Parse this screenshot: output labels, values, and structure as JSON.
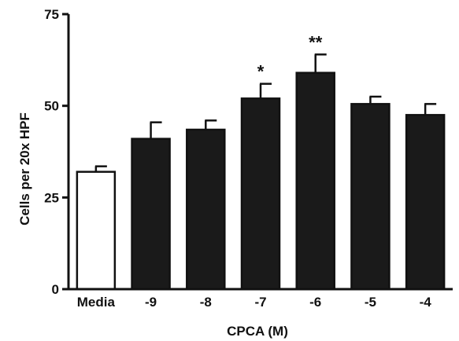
{
  "chart_data": {
    "type": "bar",
    "title": "",
    "xlabel": "CPCA (M)",
    "ylabel": "Cells per 20x HPF",
    "ylim": [
      0,
      75
    ],
    "yticks": [
      0,
      25,
      50,
      75
    ],
    "grid": false,
    "legend": "none",
    "categories": [
      "Media",
      "-9",
      "-8",
      "-7",
      "-6",
      "-5",
      "-4"
    ],
    "values": [
      32,
      41,
      43.5,
      52,
      59,
      50.5,
      47.5
    ],
    "error_upper": [
      1.5,
      4.5,
      2.5,
      4,
      5,
      2,
      3
    ],
    "significance": [
      "",
      "",
      "",
      "*",
      "**",
      "",
      ""
    ],
    "fills": [
      "#ffffff",
      "#1a1a1a",
      "#1a1a1a",
      "#1a1a1a",
      "#1a1a1a",
      "#1a1a1a",
      "#1a1a1a"
    ],
    "bar_stroke": "#111111",
    "axis_color": "#111111"
  }
}
